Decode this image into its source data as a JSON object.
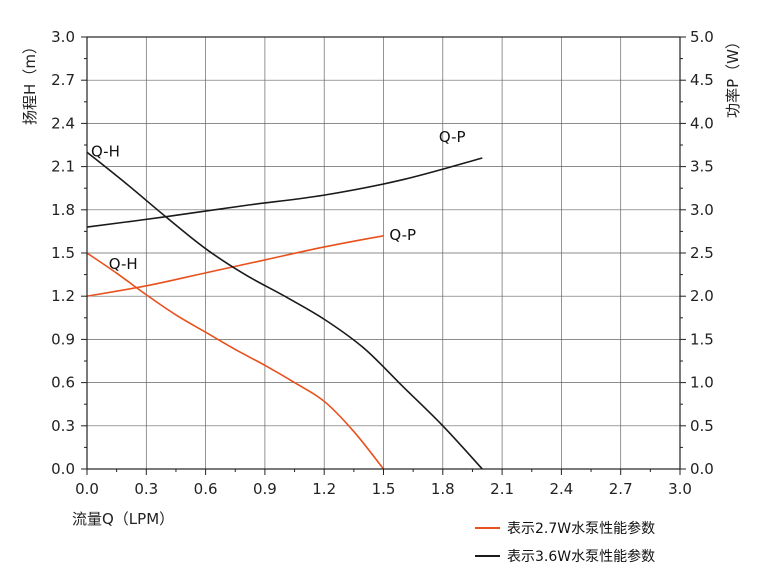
{
  "chart_data": {
    "type": "line",
    "xlabel": "流量Q（LPM）",
    "ylabel_left": "扬程H（m）",
    "ylabel_right": "功率P（W）",
    "xlim": [
      0,
      3.0
    ],
    "ylim_left": [
      0,
      3.0
    ],
    "ylim_right": [
      0,
      5.0
    ],
    "x_ticks": [
      "0.0",
      "0.3",
      "0.6",
      "0.9",
      "1.2",
      "1.5",
      "1.8",
      "2.1",
      "2.4",
      "2.7",
      "3.0"
    ],
    "y_left_ticks": [
      "0.0",
      "0.3",
      "0.6",
      "0.9",
      "1.2",
      "1.5",
      "1.8",
      "2.1",
      "2.4",
      "2.7",
      "3.0"
    ],
    "y_right_ticks": [
      "0.0",
      "0.5",
      "1.0",
      "1.5",
      "2.0",
      "2.5",
      "3.0",
      "3.5",
      "4.0",
      "4.5",
      "5.0"
    ],
    "grid": true,
    "legend_placement": "bottom-right",
    "legend": [
      {
        "label": "表示2.7W水泵性能参数",
        "color": "#e8501c"
      },
      {
        "label": "表示3.6W水泵性能参数",
        "color": "#1a1a1a"
      }
    ],
    "series": [
      {
        "label": "Q-H",
        "pump": "2.7W",
        "axis": "left",
        "color": "#e8501c",
        "x": [
          0,
          0.15,
          0.3,
          0.45,
          0.6,
          0.75,
          0.9,
          1.05,
          1.2,
          1.35,
          1.5
        ],
        "y": [
          1.5,
          1.36,
          1.21,
          1.07,
          0.95,
          0.83,
          0.72,
          0.6,
          0.47,
          0.26,
          0.0
        ]
      },
      {
        "label": "Q-P",
        "pump": "2.7W",
        "axis": "right",
        "color": "#e8501c",
        "x": [
          0,
          0.3,
          0.6,
          0.9,
          1.2,
          1.5
        ],
        "y": [
          2.0,
          2.12,
          2.27,
          2.42,
          2.57,
          2.7
        ]
      },
      {
        "label": "Q-H",
        "pump": "3.6W",
        "axis": "left",
        "color": "#1a1a1a",
        "x": [
          0,
          0.2,
          0.4,
          0.6,
          0.8,
          1.0,
          1.2,
          1.4,
          1.6,
          1.8,
          2.0
        ],
        "y": [
          2.2,
          1.98,
          1.75,
          1.53,
          1.35,
          1.2,
          1.04,
          0.84,
          0.57,
          0.3,
          0.0
        ]
      },
      {
        "label": "Q-P",
        "pump": "3.6W",
        "axis": "right",
        "color": "#1a1a1a",
        "x": [
          0,
          0.4,
          0.8,
          1.2,
          1.6,
          2.0
        ],
        "y": [
          2.8,
          2.92,
          3.05,
          3.17,
          3.35,
          3.6
        ]
      }
    ],
    "series_labels": [
      {
        "text": "Q-H",
        "series": 2,
        "at_x": 0.02,
        "at_y_left": 2.17
      },
      {
        "text": "Q-P",
        "series": 3,
        "at_x": 1.78,
        "at_y_left": 2.27
      },
      {
        "text": "Q-H",
        "series": 0,
        "at_x": 0.11,
        "at_y_left": 1.39
      },
      {
        "text": "Q-P",
        "series": 1,
        "at_x": 1.53,
        "at_y_left": 1.59
      }
    ]
  }
}
